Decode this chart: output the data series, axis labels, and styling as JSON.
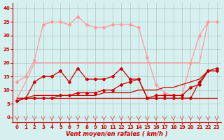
{
  "x": [
    0,
    1,
    2,
    3,
    4,
    5,
    6,
    7,
    8,
    9,
    10,
    11,
    12,
    13,
    14,
    15,
    16,
    17,
    18,
    19,
    20,
    21,
    22,
    23
  ],
  "line_avg_low": [
    7,
    7,
    7,
    7,
    7,
    7,
    7,
    7,
    7,
    7,
    7,
    7,
    7,
    7,
    7,
    7,
    7,
    7,
    7,
    7,
    7,
    7,
    7,
    7
  ],
  "line_avg_trend": [
    7,
    7,
    8,
    8,
    8,
    8,
    8,
    8,
    8,
    8,
    9,
    9,
    9,
    9,
    10,
    10,
    10,
    11,
    11,
    12,
    13,
    14,
    17,
    17
  ],
  "line_wind1": [
    6,
    7,
    13,
    15,
    15,
    17,
    13,
    18,
    14,
    14,
    14,
    15,
    18,
    14,
    14,
    7,
    7,
    7,
    7,
    7,
    7,
    13,
    17,
    18
  ],
  "line_wind2": [
    6,
    7,
    7,
    7,
    7,
    8,
    8,
    9,
    9,
    9,
    10,
    10,
    12,
    13,
    14,
    7,
    8,
    8,
    8,
    8,
    11,
    12,
    17,
    17
  ],
  "line_gust1": [
    7,
    13,
    20,
    20,
    20,
    20,
    20,
    20,
    20,
    20,
    20,
    20,
    20,
    20,
    20,
    20,
    20,
    20,
    20,
    20,
    20,
    20,
    35,
    35
  ],
  "line_gust2": [
    13,
    15,
    21,
    34,
    35,
    35,
    34,
    37,
    34,
    33,
    33,
    34,
    34,
    34,
    33,
    22,
    12,
    9,
    8,
    8,
    20,
    30,
    35,
    35
  ],
  "bg_color": "#d6efef",
  "grid_color": "#b0c8c8",
  "color_dark": "#cc0000",
  "color_light": "#ff9999",
  "xlabel": "Vent moyen/en rafales ( km/h )",
  "ylim": [
    -2,
    42
  ],
  "xlim": [
    -0.5,
    23.5
  ],
  "yticks": [
    0,
    5,
    10,
    15,
    20,
    25,
    30,
    35,
    40
  ],
  "xticks": [
    0,
    1,
    2,
    3,
    4,
    5,
    6,
    7,
    8,
    9,
    10,
    11,
    12,
    13,
    14,
    15,
    16,
    17,
    18,
    19,
    20,
    21,
    22,
    23
  ]
}
